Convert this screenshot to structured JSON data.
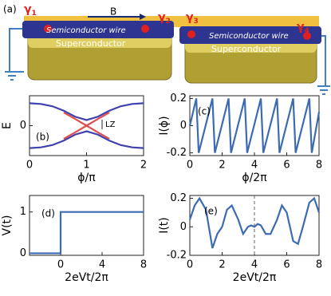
{
  "diagram": {
    "panel_label": "(a)",
    "field": "B",
    "wires": [
      "Semiconductor wire",
      "Semiconductor wire"
    ],
    "superconductors": [
      "Superconductor",
      "Superconductor"
    ],
    "majoranas": [
      {
        "symbol": "γ",
        "index": "1"
      },
      {
        "symbol": "γ",
        "index": "2"
      },
      {
        "symbol": "γ",
        "index": "3"
      },
      {
        "symbol": "γ",
        "index": "4"
      }
    ]
  },
  "chart_data": [
    {
      "type": "line",
      "panel_label": "(b)",
      "annotation": "LZ",
      "xlabel": "ϕ/π",
      "ylabel": "E",
      "xlim": [
        0,
        2
      ],
      "ylim": [
        -0.8,
        0.8
      ],
      "xticks": [
        0,
        1,
        2
      ],
      "yticks": [
        0
      ],
      "series": [
        {
          "color": "#4040b0",
          "x": [
            0,
            0.2,
            0.4,
            0.6,
            0.8,
            1,
            1.2,
            1.4,
            1.6,
            1.8,
            2
          ],
          "values": [
            0.6,
            0.58,
            0.52,
            0.4,
            0.24,
            0.15,
            0.24,
            0.4,
            0.52,
            0.58,
            0.6
          ]
        },
        {
          "color": "#4040b0",
          "x": [
            0,
            0.2,
            0.4,
            0.6,
            0.8,
            1,
            1.2,
            1.4,
            1.6,
            1.8,
            2
          ],
          "values": [
            -0.6,
            -0.58,
            -0.52,
            -0.4,
            -0.24,
            -0.15,
            -0.24,
            -0.4,
            -0.52,
            -0.58,
            -0.6
          ]
        },
        {
          "color": "#e05050",
          "x": [
            0.6,
            0.8,
            1,
            1.2,
            1.4
          ],
          "values": [
            0.35,
            0.18,
            0,
            -0.18,
            -0.35
          ]
        },
        {
          "color": "#e05050",
          "x": [
            0.6,
            0.8,
            1,
            1.2,
            1.4
          ],
          "values": [
            -0.35,
            -0.18,
            0,
            0.18,
            0.35
          ]
        }
      ]
    },
    {
      "type": "line",
      "panel_label": "(c)",
      "xlabel": "ϕ/2π",
      "ylabel": "I(ϕ)",
      "xlim": [
        0,
        8
      ],
      "ylim": [
        -0.22,
        0.22
      ],
      "xticks": [
        0,
        2,
        4,
        6,
        8
      ],
      "yticks": [
        -0.2,
        0,
        0.2
      ],
      "series": [
        {
          "color": "#3d6bb3",
          "x": [
            0,
            0.4,
            0.55,
            1.4,
            1.55,
            2.4,
            2.55,
            3.4,
            3.55,
            4.4,
            4.55,
            5.4,
            5.55,
            6.4,
            6.55,
            7.4,
            7.55,
            8
          ],
          "values": [
            0,
            0.2,
            -0.2,
            0.2,
            -0.2,
            0.2,
            -0.2,
            0.2,
            -0.2,
            0.2,
            -0.2,
            0.2,
            -0.2,
            0.2,
            -0.2,
            0.2,
            -0.2,
            0.1
          ]
        }
      ]
    },
    {
      "type": "line",
      "panel_label": "(d)",
      "xlabel": "2eVt/2π",
      "ylabel": "V(t)",
      "xlim": [
        -3,
        8
      ],
      "ylim": [
        -0.05,
        1.4
      ],
      "xticks": [
        0,
        4,
        8
      ],
      "yticks": [
        0,
        1
      ],
      "series": [
        {
          "color": "#3d6bb3",
          "x": [
            -3,
            0,
            0,
            8
          ],
          "values": [
            0,
            0,
            1,
            1
          ]
        }
      ]
    },
    {
      "type": "line",
      "panel_label": "(e)",
      "xlabel": "2eVt/2π",
      "ylabel": "I(t)",
      "xlim": [
        0,
        8
      ],
      "ylim": [
        -0.2,
        0.22
      ],
      "xticks": [
        0,
        2,
        4,
        6,
        8
      ],
      "yticks": [
        -0.2,
        0,
        0.2
      ],
      "vline": 4,
      "series": [
        {
          "color": "#3d6bb3",
          "x": [
            0,
            0.3,
            0.6,
            1,
            1.4,
            1.7,
            2,
            2.3,
            2.6,
            3,
            3.3,
            3.6,
            3.8,
            4,
            4.2,
            4.4,
            4.7,
            5,
            5.4,
            5.7,
            6,
            6.4,
            6.7,
            7,
            7.4,
            7.7,
            8
          ],
          "values": [
            0.05,
            0.15,
            0.2,
            0.12,
            -0.15,
            -0.05,
            0,
            0.12,
            0.15,
            0.05,
            -0.05,
            0,
            0.01,
            0,
            0.02,
            0.01,
            -0.05,
            -0.05,
            0.05,
            0.15,
            0.1,
            -0.1,
            -0.12,
            0,
            0.17,
            0.2,
            0.1
          ]
        }
      ]
    }
  ]
}
